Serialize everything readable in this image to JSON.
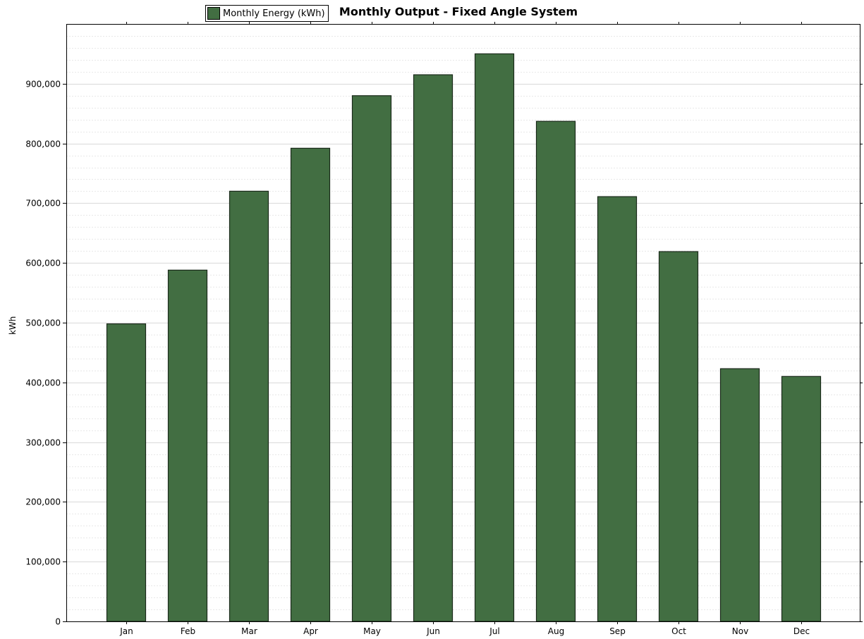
{
  "chart_data": {
    "type": "bar",
    "title": "Monthly Output - Fixed Angle System",
    "xlabel": "",
    "ylabel": "kWh",
    "categories": [
      "Jan",
      "Feb",
      "Mar",
      "Apr",
      "May",
      "Jun",
      "Jul",
      "Aug",
      "Sep",
      "Oct",
      "Nov",
      "Dec"
    ],
    "series": [
      {
        "name": "Monthly Energy (kWh)",
        "values": [
          498000,
          588000,
          720000,
          792000,
          880000,
          915000,
          950000,
          837000,
          711000,
          619000,
          423000,
          410000
        ]
      }
    ],
    "ylim": [
      0,
      1000000
    ],
    "yticks": [
      0,
      100000,
      200000,
      300000,
      400000,
      500000,
      600000,
      700000,
      800000,
      900000
    ],
    "ytick_labels": [
      "0",
      "100,000",
      "200,000",
      "300,000",
      "400,000",
      "500,000",
      "600,000",
      "700,000",
      "800,000",
      "900,000"
    ],
    "grid": true,
    "legend_position": "top-left"
  },
  "colors": {
    "bar_fill": "#426e42",
    "bar_stroke": "#1a2a1a",
    "grid_major": "#d9d9d9",
    "grid_minor": "#e8e8e8",
    "axis": "#000000"
  }
}
